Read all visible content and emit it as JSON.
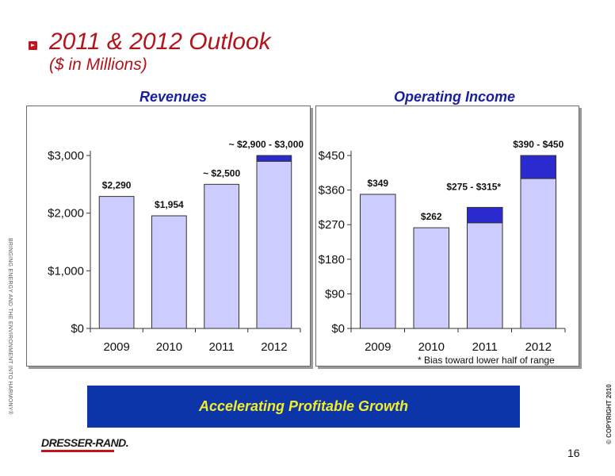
{
  "slide": {
    "title": "2011 & 2012 Outlook",
    "subtitle": "($ in Millions)",
    "side_text": "BRINGING ENERGY AND THE ENVIRONMENT INTO HARMONY®",
    "copyright": "© COPYRIGHT 2010",
    "banner": "Accelerating Profitable Growth",
    "logo": "DRESSER-RAND.",
    "page_number": "16",
    "footnote": "*  Bias toward lower half of range"
  },
  "colors": {
    "base_bar": "#ccccff",
    "range_bar": "#2a2acf",
    "accent": "#b3141a",
    "banner": "#0b35a8",
    "banner_text": "#f2ef2a"
  },
  "chart_data": [
    {
      "type": "bar",
      "title": "Revenues",
      "categories": [
        "2009",
        "2010",
        "2011",
        "2012"
      ],
      "ylim": [
        0,
        3000
      ],
      "yticks": [
        0,
        1000,
        2000,
        3000
      ],
      "ytick_labels": [
        "$0",
        "$1,000",
        "$2,000",
        "$3,000"
      ],
      "series": [
        {
          "role": "base",
          "values": [
            2290,
            1954,
            2500,
            2900
          ]
        },
        {
          "role": "range",
          "values": [
            0,
            0,
            0,
            100
          ]
        }
      ],
      "data_labels": [
        "$2,290",
        "$1,954",
        "~ $2,500",
        "~ $2,900 - $3,000"
      ],
      "grid": false
    },
    {
      "type": "bar",
      "title": "Operating Income",
      "categories": [
        "2009",
        "2010",
        "2011",
        "2012"
      ],
      "ylim": [
        0,
        450
      ],
      "yticks": [
        0,
        90,
        180,
        270,
        360,
        450
      ],
      "ytick_labels": [
        "$0",
        "$90",
        "$180",
        "$270",
        "$360",
        "$450"
      ],
      "series": [
        {
          "role": "base",
          "values": [
            349,
            262,
            275,
            390
          ]
        },
        {
          "role": "range",
          "values": [
            0,
            0,
            40,
            60
          ]
        }
      ],
      "data_labels": [
        "$349",
        "$262",
        "$275 - $315*",
        "$390 - $450"
      ],
      "grid": false
    }
  ]
}
